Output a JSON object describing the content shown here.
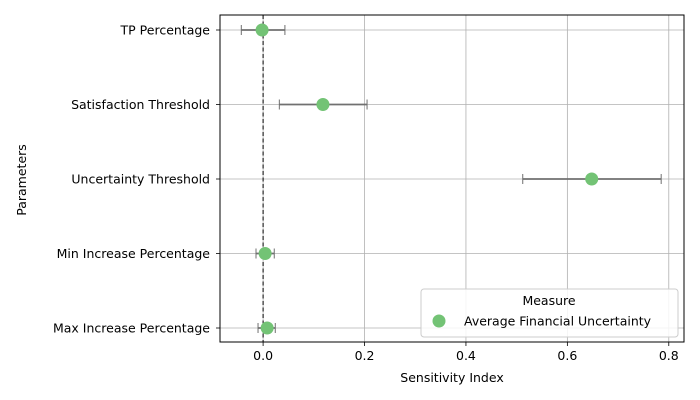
{
  "chart_data": {
    "type": "scatter",
    "orientation": "horizontal",
    "xlabel": "Sensitivity Index",
    "ylabel": "Parameters",
    "xlim": [
      -0.085,
      0.83
    ],
    "xticks": [
      0.0,
      0.2,
      0.4,
      0.6,
      0.8
    ],
    "xtick_labels": [
      "0.0",
      "0.2",
      "0.4",
      "0.6",
      "0.8"
    ],
    "grid": true,
    "reference_line": {
      "x": 0,
      "style": "dashed",
      "color": "#000000"
    },
    "categories": [
      "TP Percentage",
      "Satisfaction Threshold",
      "Uncertainty Threshold",
      "Min Increase Percentage",
      "Max Increase Percentage"
    ],
    "series": [
      {
        "name": "Average Financial Uncertainty",
        "color": "#73c375",
        "values": [
          -0.002,
          0.118,
          0.648,
          0.004,
          0.008
        ],
        "error_low": [
          -0.043,
          0.032,
          0.512,
          -0.014,
          -0.01
        ],
        "error_high": [
          0.043,
          0.205,
          0.785,
          0.022,
          0.024
        ]
      }
    ],
    "error_bar_color": "#707070",
    "legend": {
      "title": "Measure",
      "placement": "lower-right",
      "entries": [
        "Average Financial Uncertainty"
      ]
    }
  }
}
